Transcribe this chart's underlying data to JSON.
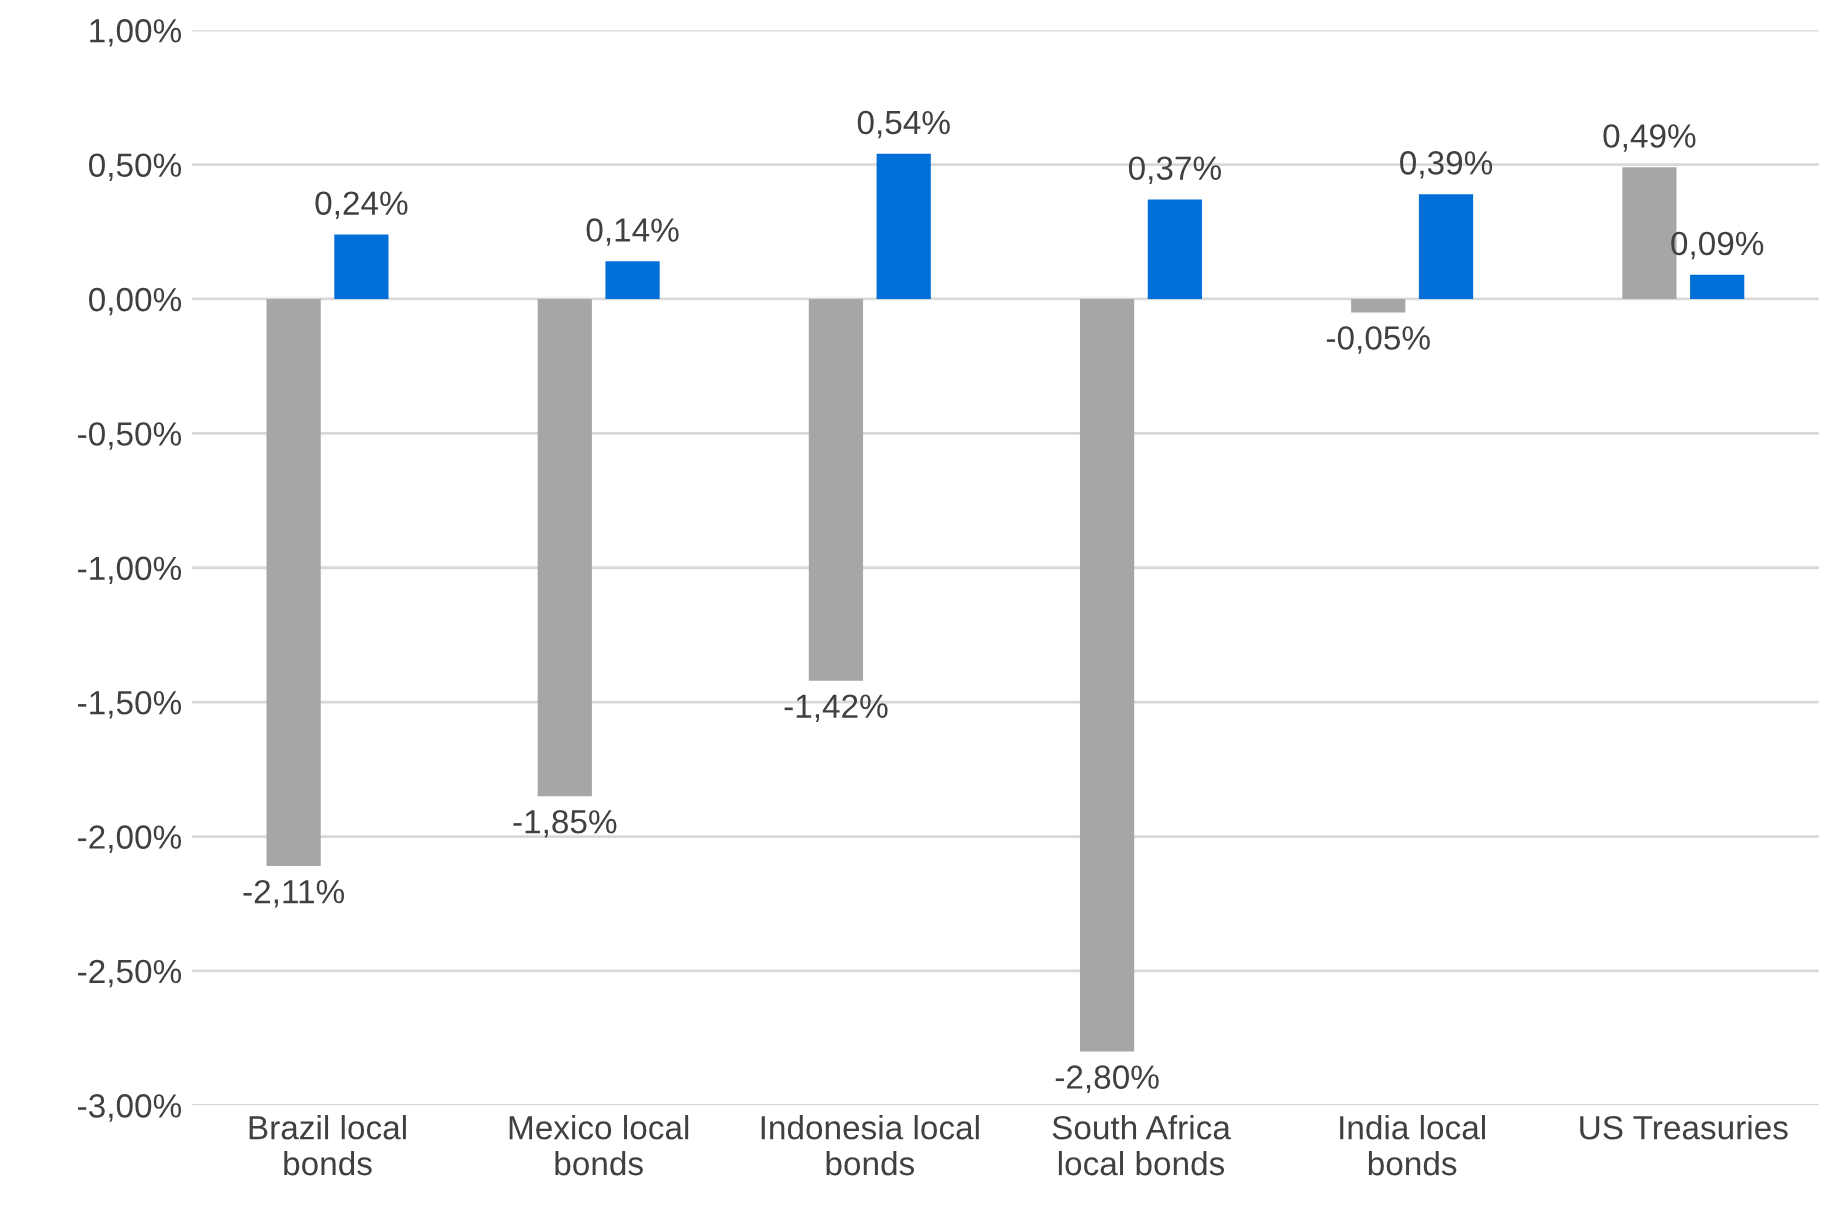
{
  "chart_data": {
    "type": "bar",
    "categories": [
      "Brazil local\nbonds",
      "Mexico local\nbonds",
      "Indonesia local\nbonds",
      "South Africa\nlocal bonds",
      "India local\nbonds",
      "US Treasuries"
    ],
    "series": [
      {
        "color": "#a6a6a6",
        "values": [
          -2.11,
          -1.85,
          -1.42,
          -2.8,
          -0.05,
          0.49
        ],
        "value_labels": [
          "-2,11%",
          "-1,85%",
          "-1,42%",
          "-2,80%",
          "-0,05%",
          "0,49%"
        ]
      },
      {
        "color": "#0070d8",
        "values": [
          0.24,
          0.14,
          0.54,
          0.37,
          0.39,
          0.09
        ],
        "value_labels": [
          "0,24%",
          "0,14%",
          "0,54%",
          "0,37%",
          "0,39%",
          "0,09%"
        ]
      }
    ],
    "ylim": [
      -3.0,
      1.0
    ],
    "yticks": [
      {
        "value": -3.0,
        "label": "-3,00%"
      },
      {
        "value": -2.5,
        "label": "-2,50%"
      },
      {
        "value": -2.0,
        "label": "-2,00%"
      },
      {
        "value": -1.5,
        "label": "-1,50%"
      },
      {
        "value": -1.0,
        "label": "-1,00%"
      },
      {
        "value": -0.5,
        "label": "-0,50%"
      },
      {
        "value": 0.0,
        "label": "0,00%"
      },
      {
        "value": 0.5,
        "label": "0,50%"
      },
      {
        "value": 1.0,
        "label": "1,00%"
      }
    ],
    "grid": "y",
    "legend": false
  }
}
